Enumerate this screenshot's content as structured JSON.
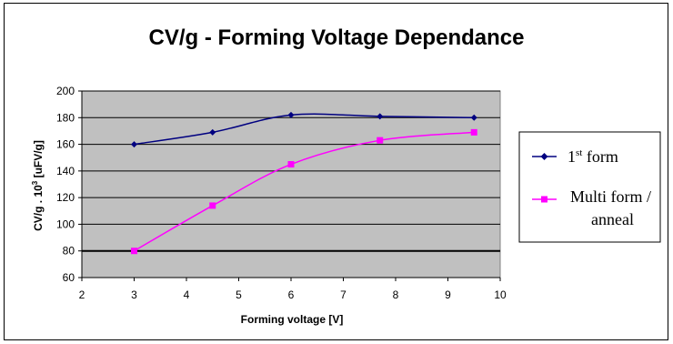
{
  "chart_data": {
    "type": "line",
    "title": "CV/g - Forming Voltage Dependance",
    "xlabel": "Forming voltage [V]",
    "ylabel": "CV/g . 10³ [uFV/g]",
    "xlim": [
      2,
      10
    ],
    "ylim": [
      60,
      200
    ],
    "x_ticks": [
      2,
      3,
      4,
      5,
      6,
      7,
      8,
      9,
      10
    ],
    "y_ticks": [
      60,
      80,
      100,
      120,
      140,
      160,
      180,
      200
    ],
    "grid": true,
    "legend_position": "right",
    "plot_background": "#c0c0c0",
    "series": [
      {
        "name": "1st form",
        "color": "#000080",
        "marker": "diamond",
        "x": [
          3,
          4.5,
          6,
          7.7,
          9.5
        ],
        "y": [
          160,
          169,
          182,
          181,
          180
        ]
      },
      {
        "name": "Multi form / anneal",
        "color": "#ff00ff",
        "marker": "square",
        "x": [
          3,
          4.5,
          6,
          7.7,
          9.5
        ],
        "y": [
          80,
          114,
          145,
          163,
          169
        ]
      }
    ]
  },
  "legend": {
    "item1_main": "1",
    "item1_sup": "st",
    "item1_rest": " form",
    "item2_line1": "Multi form /",
    "item2_line2": "anneal"
  },
  "ylabel_parts": {
    "main": "CV/g . 10",
    "sup": "3",
    "rest": " [uFV/g]"
  }
}
